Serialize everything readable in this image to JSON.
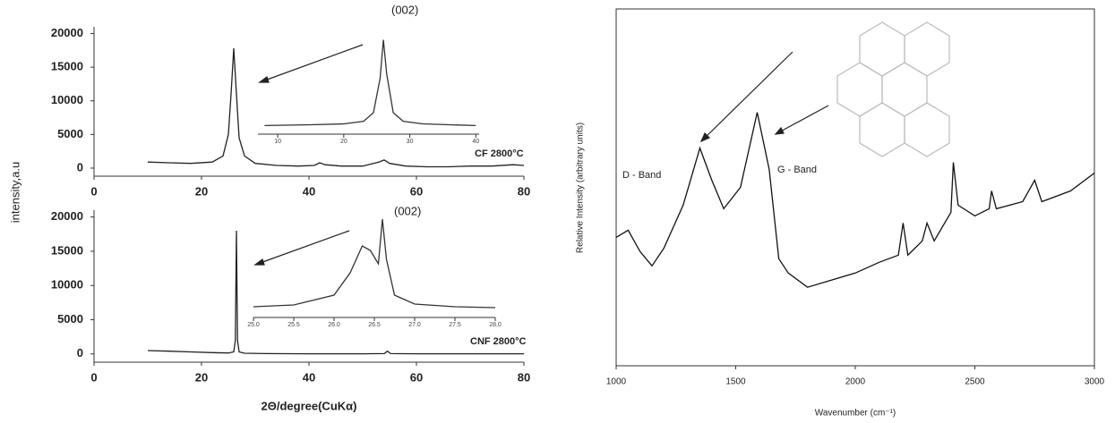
{
  "chart_data": [
    {
      "type": "line",
      "ylabel": "intensity,a.u",
      "annotations": [
        "(002)",
        "CF 2800°C"
      ],
      "color": "#222",
      "x": [
        10,
        14,
        18,
        22,
        24,
        25,
        25.5,
        26,
        26.5,
        27,
        28,
        30,
        34,
        38,
        41,
        42,
        43,
        46,
        50,
        53,
        54,
        55,
        58,
        62,
        66,
        70,
        74,
        78,
        80
      ],
      "values": [
        900,
        800,
        700,
        900,
        1800,
        5000,
        11000,
        17800,
        11000,
        4500,
        1800,
        700,
        400,
        300,
        400,
        800,
        500,
        300,
        300,
        900,
        1200,
        700,
        300,
        200,
        200,
        300,
        300,
        500,
        400
      ],
      "xlim": [
        0,
        80
      ],
      "xticks": [
        0,
        20,
        40,
        60,
        80
      ],
      "ylim": [
        -1200,
        21000
      ],
      "yticks": [
        0,
        5000,
        10000,
        15000,
        20000
      ]
    },
    {
      "type": "line",
      "color": "#333",
      "x": [
        8,
        15,
        20,
        23,
        24.5,
        25.5,
        26,
        26.5,
        27.5,
        29,
        32,
        36,
        40
      ],
      "values": [
        0,
        1,
        2,
        5,
        15,
        55,
        100,
        60,
        15,
        5,
        2,
        1,
        0
      ],
      "xlim": [
        7,
        40.5
      ],
      "xticks": [
        10,
        20,
        30,
        40
      ],
      "ylim": [
        -10,
        110
      ]
    },
    {
      "type": "line",
      "xlabel": "2Θ/degree(CuKα)",
      "annotations": [
        "(002)",
        "CNF 2800°C"
      ],
      "color": "#222",
      "x": [
        10,
        14,
        18,
        22,
        25,
        26,
        26.3,
        26.5,
        26.7,
        27,
        28,
        32,
        40,
        50,
        54,
        54.6,
        55.2,
        60,
        70,
        80
      ],
      "values": [
        500,
        400,
        300,
        200,
        150,
        300,
        2000,
        18000,
        2000,
        300,
        100,
        50,
        30,
        30,
        50,
        400,
        50,
        30,
        30,
        30
      ],
      "xlim": [
        0,
        80
      ],
      "xticks": [
        0,
        20,
        40,
        60,
        80
      ],
      "ylim": [
        -1200,
        21000
      ],
      "yticks": [
        0,
        5000,
        10000,
        15000,
        20000
      ]
    },
    {
      "type": "line",
      "color": "#333",
      "x": [
        25,
        25.5,
        26,
        26.2,
        26.35,
        26.45,
        26.55,
        26.6,
        26.65,
        26.75,
        27,
        27.5,
        28
      ],
      "values": [
        2,
        4,
        15,
        40,
        70,
        65,
        50,
        100,
        55,
        15,
        5,
        2,
        1
      ],
      "xlim": [
        25,
        28
      ],
      "xticks": [
        {
          "value": 25,
          "label": "25.0"
        },
        25.5,
        {
          "value": 26,
          "label": "26.0"
        },
        26.5,
        {
          "value": 27,
          "label": "27.0"
        },
        27.5,
        {
          "value": 28,
          "label": "28.0"
        }
      ],
      "ylim": [
        -10,
        110
      ]
    },
    {
      "type": "line",
      "xlabel": "Wavenumber (cm⁻¹)",
      "ylabel": "Relative Intensity (arbitrary units)",
      "annotations": [
        "D - Band",
        "G - Band"
      ],
      "color": "#111",
      "x": [
        1000,
        1050,
        1100,
        1150,
        1200,
        1280,
        1350,
        1400,
        1450,
        1520,
        1590,
        1640,
        1680,
        1720,
        1800,
        1900,
        2000,
        2100,
        2180,
        2200,
        2220,
        2280,
        2300,
        2330,
        2400,
        2410,
        2430,
        2500,
        2560,
        2570,
        2590,
        2700,
        2750,
        2780,
        2900,
        3000
      ],
      "values": [
        36,
        38,
        32,
        28,
        33,
        45,
        61,
        52,
        44,
        50,
        71,
        55,
        30,
        26,
        22,
        24,
        26,
        29,
        31,
        40,
        31,
        35,
        40,
        35,
        43,
        57,
        45,
        42,
        44,
        49,
        44,
        46,
        52,
        46,
        49,
        54
      ],
      "xlim": [
        1000,
        3000
      ],
      "xticks": [
        1000,
        1500,
        2000,
        2500,
        3000
      ],
      "ylim": [
        0,
        100
      ]
    }
  ]
}
